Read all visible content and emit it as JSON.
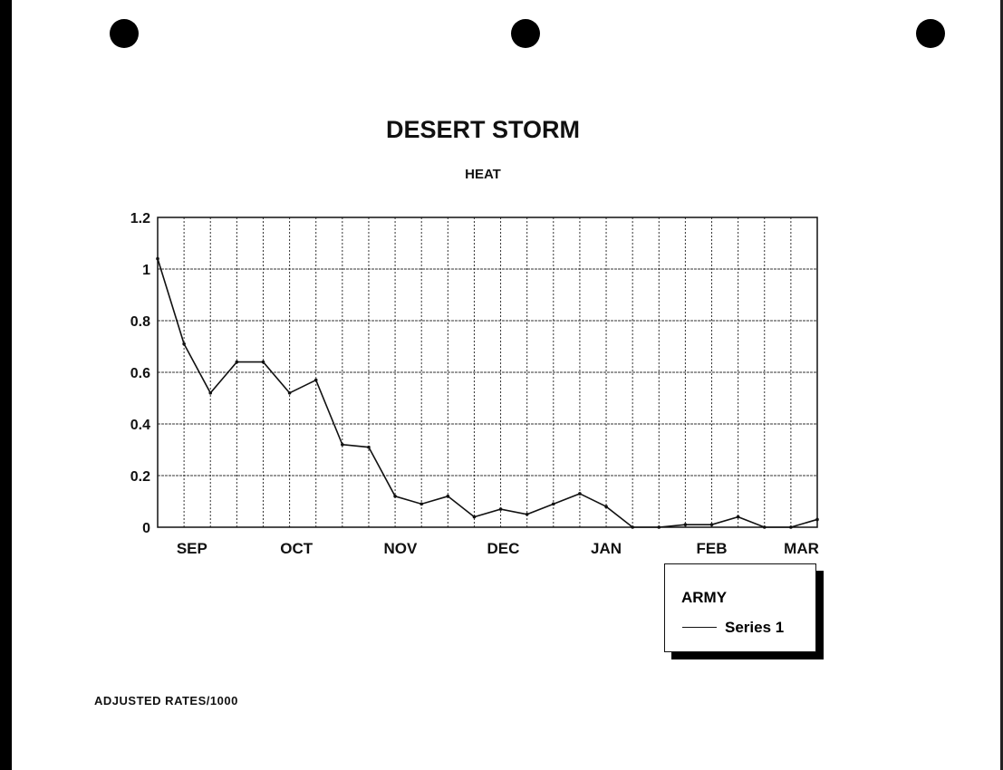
{
  "chart_data": {
    "type": "line",
    "title": "DESERT STORM",
    "subtitle": "HEAT",
    "xlabel": "",
    "ylabel": "",
    "note": "ADJUSTED RATES/1000",
    "x_tick_labels": [
      "SEP",
      "OCT",
      "NOV",
      "DEC",
      "JAN",
      "FEB",
      "MAR"
    ],
    "y_ticks": [
      "0",
      "0.2",
      "0.4",
      "0.6",
      "0.8",
      "1",
      "1.2"
    ],
    "ylim": [
      0,
      1.2
    ],
    "grid": true,
    "legend": {
      "title": "ARMY",
      "placement": "bottom-right"
    },
    "series": [
      {
        "name": "Series 1",
        "color": "#111111",
        "values": [
          1.04,
          0.71,
          0.52,
          0.64,
          0.64,
          0.52,
          0.57,
          0.32,
          0.31,
          0.12,
          0.09,
          0.12,
          0.04,
          0.07,
          0.05,
          0.09,
          0.13,
          0.08,
          0.0,
          0.0,
          0.01,
          0.01,
          0.04,
          0.0,
          0.0,
          0.03
        ]
      }
    ]
  }
}
